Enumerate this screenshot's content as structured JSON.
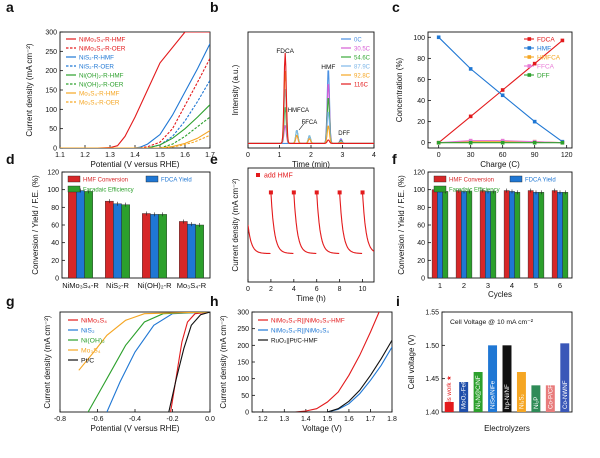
{
  "chart_data": [
    {
      "panel": "a",
      "type": "line",
      "xlabel": "Potential (V versus RHE)",
      "ylabel": "Current density (mA cm⁻²)",
      "xlim": [
        1.1,
        1.7
      ],
      "ylim": [
        0,
        300
      ],
      "xticks": [
        1.1,
        1.2,
        1.3,
        1.4,
        1.5,
        1.6,
        1.7
      ],
      "yticks": [
        0,
        50,
        100,
        150,
        200,
        250,
        300
      ],
      "legend_position": "top-left",
      "series": [
        {
          "name": "NiMo₃S₄-R-HMF",
          "color": "#e31a1c",
          "dash": false,
          "x": [
            1.1,
            1.25,
            1.3,
            1.33,
            1.36,
            1.4,
            1.45,
            1.5,
            1.6,
            1.7
          ],
          "y": [
            0,
            0,
            1,
            6,
            30,
            80,
            150,
            220,
            300,
            300
          ]
        },
        {
          "name": "NiMo₃S₄-R-OER",
          "color": "#e31a1c",
          "dash": true,
          "x": [
            1.1,
            1.4,
            1.45,
            1.5,
            1.55,
            1.6,
            1.65,
            1.7
          ],
          "y": [
            0,
            0,
            3,
            15,
            50,
            110,
            170,
            232
          ]
        },
        {
          "name": "NiS₂-R-HMF",
          "color": "#1f77d4",
          "dash": false,
          "x": [
            1.1,
            1.4,
            1.42,
            1.45,
            1.5,
            1.55,
            1.6,
            1.65,
            1.7
          ],
          "y": [
            0,
            0,
            2,
            10,
            35,
            85,
            145,
            205,
            270
          ]
        },
        {
          "name": "NiS₂-R-OER",
          "color": "#1f77d4",
          "dash": true,
          "x": [
            1.1,
            1.45,
            1.5,
            1.55,
            1.6,
            1.65,
            1.7
          ],
          "y": [
            0,
            0,
            8,
            30,
            70,
            120,
            175
          ]
        },
        {
          "name": "Ni(OH)₂-R-HMF",
          "color": "#2ca02c",
          "dash": false,
          "x": [
            1.1,
            1.45,
            1.5,
            1.55,
            1.6,
            1.65,
            1.7
          ],
          "y": [
            0,
            0,
            8,
            25,
            50,
            80,
            112
          ]
        },
        {
          "name": "Ni(OH)₂-R-OER",
          "color": "#2ca02c",
          "dash": true,
          "x": [
            1.1,
            1.5,
            1.55,
            1.6,
            1.65,
            1.7
          ],
          "y": [
            0,
            0,
            10,
            30,
            55,
            80
          ]
        },
        {
          "name": "Mo₃S₄-R-HMF",
          "color": "#f5a623",
          "dash": false,
          "x": [
            1.1,
            1.5,
            1.55,
            1.6,
            1.65,
            1.7
          ],
          "y": [
            0,
            0,
            4,
            12,
            25,
            45
          ]
        },
        {
          "name": "Mo₃S₄-R-OER",
          "color": "#f5a623",
          "dash": true,
          "x": [
            1.1,
            1.52,
            1.58,
            1.64,
            1.7
          ],
          "y": [
            0,
            0,
            6,
            16,
            33
          ]
        }
      ]
    },
    {
      "panel": "b",
      "type": "line",
      "xlabel": "Time (min)",
      "ylabel": "Intensity (a.u.)",
      "xlim": [
        0,
        4
      ],
      "xticks": [
        0,
        1,
        2,
        3,
        4
      ],
      "annotations": [
        "FDCA",
        "HMF",
        "HMFCA",
        "FFCA",
        "DFF"
      ],
      "legend_position": "top-right",
      "series": [
        {
          "name": "0C",
          "color": "#4a90e2"
        },
        {
          "name": "30.5C",
          "color": "#d65cd6"
        },
        {
          "name": "54.6C",
          "color": "#3aaa3a"
        },
        {
          "name": "87.9C",
          "color": "#7fb7e8"
        },
        {
          "name": "92.8C",
          "color": "#f5a623"
        },
        {
          "name": "116C",
          "color": "#e31a1c"
        }
      ]
    },
    {
      "panel": "c",
      "type": "line",
      "xlabel": "Charge (C)",
      "ylabel": "Concentration (%)",
      "xlim": [
        -10,
        125
      ],
      "ylim": [
        -5,
        105
      ],
      "xticks": [
        0,
        30,
        60,
        90,
        120
      ],
      "yticks": [
        0,
        20,
        40,
        60,
        80,
        100
      ],
      "legend_position": "top-right",
      "x": [
        0,
        30,
        60,
        90,
        116
      ],
      "series": [
        {
          "name": "FDCA",
          "color": "#e31a1c",
          "values": [
            0,
            25,
            50,
            75,
            97
          ]
        },
        {
          "name": "HMF",
          "color": "#1f77d4",
          "values": [
            100,
            70,
            45,
            20,
            1
          ]
        },
        {
          "name": "HMFCA",
          "color": "#f5a623",
          "values": [
            0,
            1,
            1,
            1,
            0
          ]
        },
        {
          "name": "FFCA",
          "color": "#e87bd6",
          "values": [
            0,
            2,
            2,
            1,
            0
          ]
        },
        {
          "name": "DFF",
          "color": "#2ca02c",
          "values": [
            0,
            0,
            0,
            0,
            0
          ]
        }
      ]
    },
    {
      "panel": "d",
      "type": "bar",
      "ylabel": "Conversion / Yield / F.E. (%)",
      "ylim": [
        0,
        120
      ],
      "yticks": [
        0,
        20,
        40,
        60,
        80,
        100,
        120
      ],
      "categories": [
        "NiMo₃S₄-R",
        "NiS₂-R",
        "Ni(OH)₂-R",
        "Mo₃S₄-R"
      ],
      "legend_position": "top",
      "series": [
        {
          "name": "HMF Conversion",
          "color": "#d62728",
          "values": [
            100,
            87,
            73,
            64
          ]
        },
        {
          "name": "FDCA Yield",
          "color": "#1f77d4",
          "values": [
            99,
            84,
            72,
            61
          ]
        },
        {
          "name": "Faradaic Efficiency",
          "color": "#2ca02c",
          "values": [
            98,
            83,
            72,
            60
          ]
        }
      ]
    },
    {
      "panel": "e",
      "type": "line",
      "xlabel": "Time (h)",
      "ylabel": "Current density (mA cm⁻²)",
      "xlim": [
        0,
        11
      ],
      "ylim": [
        0,
        140
      ],
      "xticks": [
        0,
        2,
        4,
        6,
        8,
        10
      ],
      "yticks": [
        0,
        20,
        40,
        60,
        80,
        100,
        120,
        140
      ],
      "legend": "add HMF",
      "marker_color": "#e31a1c",
      "add_hmf_times": [
        2,
        4,
        6,
        8,
        10
      ],
      "series": [
        {
          "name": "",
          "color": "#e31a1c",
          "cycle_peak": 110,
          "cycle_end": 35
        }
      ]
    },
    {
      "panel": "f",
      "type": "bar",
      "xlabel": "Cycles",
      "ylabel": "Conversion / Yield / F.E. (%)",
      "ylim": [
        0,
        120
      ],
      "yticks": [
        0,
        20,
        40,
        60,
        80,
        100,
        120
      ],
      "categories": [
        "1",
        "2",
        "3",
        "4",
        "5",
        "6"
      ],
      "legend_position": "top",
      "series": [
        {
          "name": "HMF Conversion",
          "color": "#d62728",
          "values": [
            100,
            99,
            99,
            99,
            99,
            99
          ]
        },
        {
          "name": "FDCA Yield",
          "color": "#1f77d4",
          "values": [
            99,
            98,
            98,
            98,
            97,
            97
          ]
        },
        {
          "name": "Faradaic Efficiency",
          "color": "#2ca02c",
          "values": [
            98,
            98,
            98,
            97,
            97,
            97
          ]
        }
      ]
    },
    {
      "panel": "g",
      "type": "line",
      "xlabel": "Potential (V versus RHE)",
      "ylabel": "Current density (mA cm⁻²)",
      "xlim": [
        -0.8,
        0.0
      ],
      "ylim": [
        -300,
        0
      ],
      "xticks": [
        -0.8,
        -0.6,
        -0.4,
        -0.2,
        0.0
      ],
      "legend_position": "top-left",
      "series": [
        {
          "name": "NiMo₃S₄",
          "color": "#e31a1c",
          "x": [
            0.0,
            -0.08,
            -0.12,
            -0.15,
            -0.17,
            -0.19,
            -0.21
          ],
          "y": [
            0,
            -5,
            -30,
            -90,
            -160,
            -230,
            -300
          ]
        },
        {
          "name": "NiS₂",
          "color": "#1f77d4",
          "x": [
            0.0,
            -0.2,
            -0.3,
            -0.4,
            -0.48,
            -0.55
          ],
          "y": [
            0,
            -5,
            -40,
            -120,
            -210,
            -300
          ]
        },
        {
          "name": "Ni(OH)₂",
          "color": "#2ca02c",
          "x": [
            0.0,
            -0.25,
            -0.35,
            -0.45,
            -0.55,
            -0.65
          ],
          "y": [
            0,
            -5,
            -30,
            -100,
            -200,
            -300
          ]
        },
        {
          "name": "Mo₃S₄",
          "color": "#f5a623",
          "x": [
            0.0,
            -0.35,
            -0.45,
            -0.55,
            -0.62,
            -0.7
          ],
          "y": [
            0,
            -5,
            -25,
            -70,
            -120,
            -175
          ]
        },
        {
          "name": "Pt/C",
          "color": "#111111",
          "x": [
            0.0,
            -0.05,
            -0.1,
            -0.14,
            -0.18,
            -0.22
          ],
          "y": [
            0,
            -8,
            -40,
            -110,
            -200,
            -300
          ]
        }
      ]
    },
    {
      "panel": "h",
      "type": "line",
      "xlabel": "Voltage (V)",
      "ylabel": "Current density (mA cm⁻²)",
      "xlim": [
        1.15,
        1.8
      ],
      "ylim": [
        0,
        300
      ],
      "xticks": [
        1.2,
        1.3,
        1.4,
        1.5,
        1.6,
        1.7,
        1.8
      ],
      "yticks": [
        0,
        50,
        100,
        150,
        200,
        250,
        300
      ],
      "legend_position": "top-left",
      "series": [
        {
          "name": "NiMo₃S₄-R||NiMo₃S₄-HMF",
          "color": "#e31a1c",
          "x": [
            1.15,
            1.35,
            1.4,
            1.45,
            1.5,
            1.55,
            1.6,
            1.65,
            1.7,
            1.74
          ],
          "y": [
            0,
            0,
            3,
            10,
            30,
            60,
            110,
            170,
            240,
            300
          ]
        },
        {
          "name": "NiMo₃S₄-R||NiMo₃S₄",
          "color": "#1f77d4",
          "x": [
            1.15,
            1.5,
            1.55,
            1.6,
            1.65,
            1.7,
            1.75,
            1.8
          ],
          "y": [
            0,
            0,
            8,
            25,
            55,
            95,
            140,
            195
          ]
        },
        {
          "name": "RuO₂||Pt/C-HMF",
          "color": "#111111",
          "x": [
            1.15,
            1.5,
            1.55,
            1.6,
            1.65,
            1.7,
            1.75,
            1.8
          ],
          "y": [
            0,
            0,
            10,
            32,
            65,
            110,
            160,
            215
          ]
        }
      ]
    },
    {
      "panel": "i",
      "type": "bar",
      "xlabel": "Electrolyzers",
      "ylabel": "Cell voltage (V)",
      "title": "Cell Voltage @ 10 mA cm⁻²",
      "ylim": [
        1.4,
        1.55
      ],
      "yticks": [
        1.4,
        1.45,
        1.5,
        1.55
      ],
      "categories": [
        "This work ★",
        "MoO₂-FeP@C",
        "Ni₃N@C/NF",
        "NiSe/NiFe",
        "hp-Ni/NF",
        "Ni₃S₂",
        "Ni₂P",
        "Co-P/CF",
        "Co-NWNF"
      ],
      "colors": [
        "#e31a1c",
        "#1f4eaa",
        "#2ca02c",
        "#1f77d4",
        "#111111",
        "#f5a623",
        "#2e8b57",
        "#e87b7b",
        "#3a57b8"
      ],
      "values": [
        1.415,
        1.445,
        1.46,
        1.5,
        1.5,
        1.46,
        1.44,
        1.44,
        1.503
      ]
    }
  ],
  "panel_letters": [
    "a",
    "b",
    "c",
    "d",
    "e",
    "f",
    "g",
    "h",
    "i"
  ]
}
